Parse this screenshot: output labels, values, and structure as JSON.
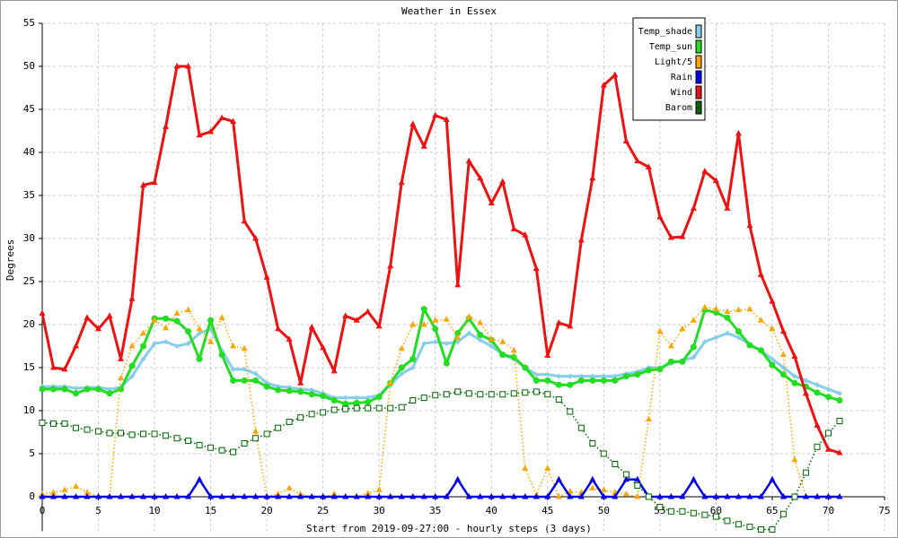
{
  "chart_data": {
    "type": "line",
    "title": "Weather in Essex",
    "x_label": "Start from 2019-09-27:00 - hourly steps (3 days)",
    "y_label": "Degrees",
    "x": [
      0,
      1,
      2,
      3,
      4,
      5,
      6,
      7,
      8,
      9,
      10,
      11,
      12,
      13,
      14,
      15,
      16,
      17,
      18,
      19,
      20,
      21,
      22,
      23,
      24,
      25,
      26,
      27,
      28,
      29,
      30,
      31,
      32,
      33,
      34,
      35,
      36,
      37,
      38,
      39,
      40,
      41,
      42,
      43,
      44,
      45,
      46,
      47,
      48,
      49,
      50,
      51,
      52,
      53,
      54,
      55,
      56,
      57,
      58,
      59,
      60,
      61,
      62,
      63,
      64,
      65,
      66,
      67,
      68,
      69,
      70,
      71
    ],
    "xlim": [
      0,
      75
    ],
    "xticks": [
      0,
      5,
      10,
      15,
      20,
      25,
      30,
      35,
      40,
      45,
      50,
      55,
      60,
      65,
      70,
      75
    ],
    "ylim": [
      -4,
      55
    ],
    "yticks": [
      0,
      5,
      10,
      15,
      20,
      25,
      30,
      35,
      40,
      45,
      50,
      55
    ],
    "grid": true,
    "legend": "top-right",
    "series": [
      {
        "name": "Temp_shade",
        "color": "#87ceeb",
        "marker": "diamond",
        "line": "solid",
        "width": 3,
        "values": [
          12.8,
          12.8,
          12.8,
          12.6,
          12.7,
          12.7,
          12.5,
          12.7,
          14,
          16,
          17.8,
          18,
          17.5,
          17.8,
          19,
          19.5,
          17,
          14.8,
          14.8,
          14.3,
          13.2,
          12.8,
          12.7,
          12.5,
          12.4,
          12,
          11.5,
          11.5,
          11.5,
          11.5,
          11.8,
          13,
          14.3,
          15,
          17.8,
          18,
          17.8,
          18,
          19,
          18.2,
          17.5,
          16.5,
          16,
          15,
          14.2,
          14.2,
          14,
          14,
          14,
          14,
          14,
          14,
          14.3,
          14.5,
          15,
          15,
          15.5,
          15.8,
          16.2,
          18,
          18.5,
          19,
          18.5,
          17.7,
          17,
          16,
          15,
          14,
          13.5,
          13,
          12.5,
          12
        ]
      },
      {
        "name": "Temp_sun",
        "color": "#22dd22",
        "marker": "circle",
        "line": "solid",
        "width": 3,
        "values": [
          12.5,
          12.5,
          12.5,
          12,
          12.5,
          12.5,
          12,
          12.5,
          15.2,
          17.5,
          20.7,
          20.7,
          20.4,
          19.2,
          16,
          20.5,
          16.5,
          13.5,
          13.5,
          13.5,
          12.8,
          12.4,
          12.3,
          12.2,
          11.9,
          11.7,
          11.2,
          10.8,
          10.9,
          11,
          11.6,
          13.2,
          15,
          16,
          21.8,
          19.5,
          15.5,
          19,
          20.7,
          18.8,
          18.2,
          16.5,
          16.2,
          15,
          13.5,
          13.5,
          13,
          13,
          13.5,
          13.5,
          13.5,
          13.5,
          14,
          14.2,
          14.7,
          14.8,
          15.7,
          15.7,
          17.4,
          21.7,
          21.4,
          20.8,
          19.2,
          17.6,
          17,
          15.3,
          14.2,
          13.2,
          12.8,
          12.1,
          11.6,
          11.2
        ]
      },
      {
        "name": "Light/5",
        "color": "#ffa500",
        "marker": "triangle",
        "line": "dotted",
        "width": 1.5,
        "values": [
          0.3,
          0.5,
          0.8,
          1.2,
          0.5,
          0,
          0,
          13.8,
          17.5,
          19,
          20.5,
          19.6,
          21.3,
          21.7,
          19.5,
          18,
          20.8,
          17.5,
          17.2,
          7.6,
          0,
          0.3,
          1,
          0.3,
          0,
          0,
          0.3,
          0,
          0,
          0.4,
          0.8,
          13.2,
          17.2,
          20,
          20,
          20.5,
          20.6,
          18.5,
          20.9,
          20.2,
          18.3,
          18,
          17,
          3.3,
          0.2,
          3.3,
          0,
          0.6,
          0.5,
          1,
          0.8,
          0.5,
          0.3,
          0,
          9,
          19.2,
          17.5,
          19.5,
          20.5,
          22,
          21.8,
          21.5,
          21.7,
          21.8,
          20.5,
          19.5,
          16.5,
          4.3,
          0,
          0,
          0,
          0
        ]
      },
      {
        "name": "Rain",
        "color": "#0000ee",
        "marker": "triangle",
        "line": "solid",
        "width": 2.5,
        "values": [
          0,
          0,
          0,
          0,
          0,
          0,
          0,
          0,
          0,
          0,
          0,
          0,
          0,
          0,
          2,
          0,
          0,
          0,
          0,
          0,
          0,
          0,
          0,
          0,
          0,
          0,
          0,
          0,
          0,
          0,
          0,
          0,
          0,
          0,
          0,
          0,
          0,
          2,
          0,
          0,
          0,
          0,
          0,
          0,
          0,
          0,
          2,
          0,
          0,
          2,
          0,
          0,
          2,
          2,
          0,
          0,
          0,
          0,
          2,
          0,
          0,
          0,
          0,
          0,
          0,
          2,
          0,
          0,
          0,
          0,
          0,
          0
        ]
      },
      {
        "name": "Wind",
        "color": "#ee1111",
        "marker": "triangle",
        "line": "solid",
        "width": 3,
        "values": [
          21.3,
          15,
          14.8,
          17.5,
          20.8,
          19.5,
          21,
          16,
          23,
          36.2,
          36.5,
          43,
          50,
          50,
          42,
          42.4,
          44,
          43.6,
          32,
          30,
          25.5,
          19.5,
          18.3,
          13.2,
          19.7,
          17.3,
          14.6,
          21,
          20.5,
          21.5,
          19.8,
          26.8,
          36.5,
          43.3,
          40.7,
          44.3,
          43.8,
          24.6,
          39,
          37,
          34.1,
          36.6,
          31.1,
          30.4,
          26.5,
          16.4,
          20.2,
          19.8,
          29.8,
          37,
          47.8,
          49,
          41.3,
          39,
          38.3,
          32.5,
          30.1,
          30.2,
          33.5,
          37.8,
          36.7,
          33.5,
          42.2,
          31.5,
          25.8,
          22.7,
          19.2,
          16.3,
          12,
          8.3,
          5.5,
          5.1
        ]
      },
      {
        "name": "Barom",
        "color": "#006400",
        "marker": "square",
        "line": "dotted",
        "width": 1.5,
        "values": [
          8.6,
          8.5,
          8.5,
          8,
          7.8,
          7.6,
          7.4,
          7.4,
          7.2,
          7.3,
          7.3,
          7.1,
          6.8,
          6.5,
          6,
          5.7,
          5.4,
          5.2,
          6.2,
          6.8,
          7.3,
          8,
          8.7,
          9.2,
          9.6,
          9.8,
          10.1,
          10.2,
          10.3,
          10.3,
          10.3,
          10.3,
          10.4,
          11.2,
          11.5,
          11.8,
          11.9,
          12.2,
          12,
          11.9,
          11.9,
          11.9,
          12,
          12.1,
          12.2,
          11.9,
          11.3,
          9.9,
          8,
          6.2,
          5,
          3.8,
          2.6,
          1.3,
          0,
          -1.2,
          -1.7,
          -1.7,
          -1.9,
          -2.1,
          -2.3,
          -2.8,
          -3.2,
          -3.5,
          -3.8,
          -3.8,
          -2,
          0,
          2.8,
          5.8,
          7.4,
          8.8
        ]
      }
    ]
  }
}
